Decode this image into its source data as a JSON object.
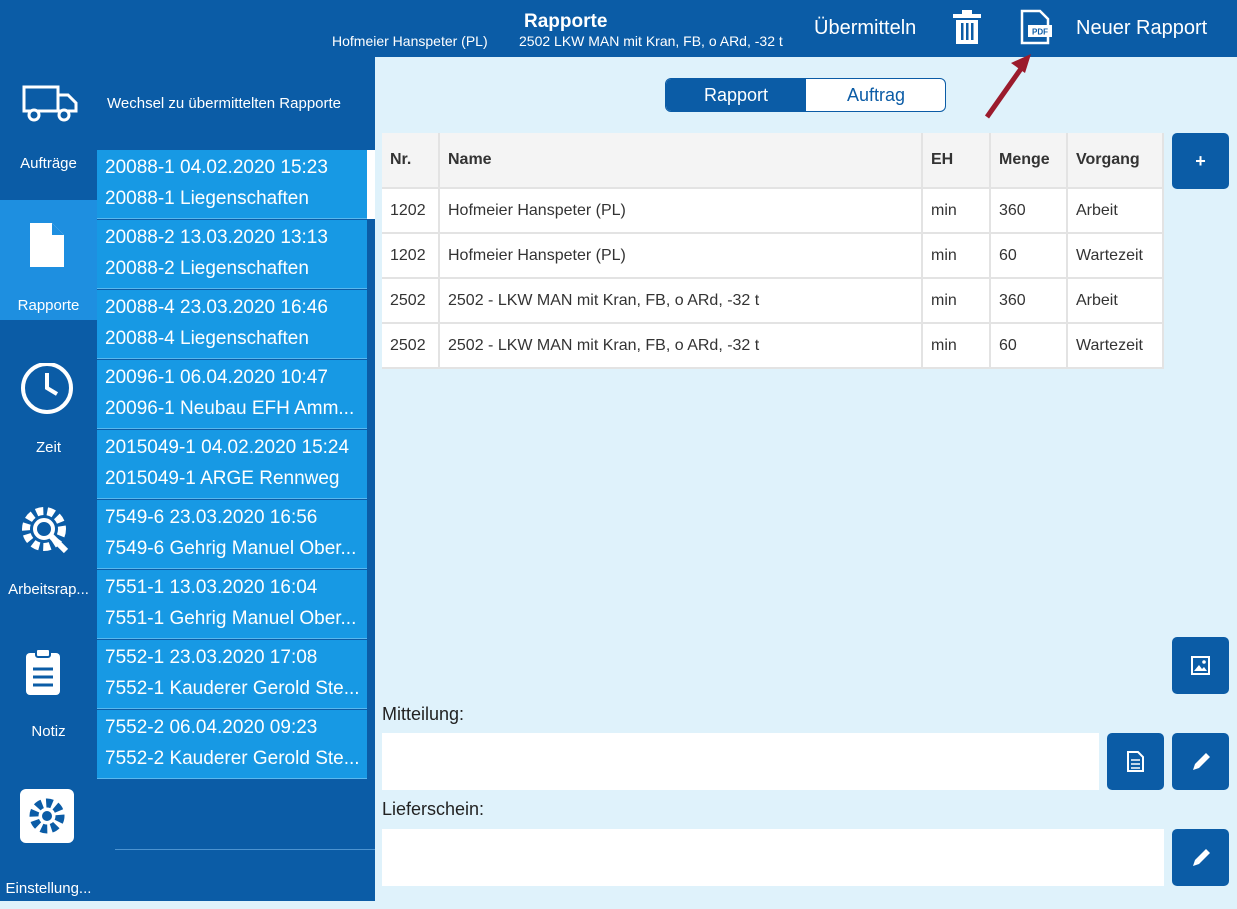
{
  "header": {
    "title": "Rapporte",
    "subtitle_person": "Hofmeier Hanspeter (PL)",
    "subtitle_vehicle": "2502 LKW MAN mit Kran, FB, o ARd, -32 t",
    "submit": "Übermitteln",
    "new_report": "Neuer Rapport"
  },
  "nav": [
    "Aufträge",
    "Rapporte",
    "Zeit",
    "Arbeitsrap...",
    "Notiz",
    "Einstellung..."
  ],
  "list": {
    "toggle": "Wechsel zu übermittelten Rapporte",
    "items": [
      {
        "line1": "20088-1 04.02.2020 15:23",
        "line2": "20088-1 Liegenschaften"
      },
      {
        "line1": "20088-2 13.03.2020 13:13",
        "line2": "20088-2 Liegenschaften"
      },
      {
        "line1": "20088-4 23.03.2020 16:46",
        "line2": "20088-4 Liegenschaften"
      },
      {
        "line1": "20096-1 06.04.2020 10:47",
        "line2": "20096-1 Neubau EFH Amm..."
      },
      {
        "line1": "2015049-1 04.02.2020 15:24",
        "line2": "2015049-1 ARGE Rennweg"
      },
      {
        "line1": "7549-6 23.03.2020 16:56",
        "line2": "7549-6 Gehrig Manuel Ober..."
      },
      {
        "line1": "7551-1 13.03.2020 16:04",
        "line2": "7551-1 Gehrig Manuel Ober..."
      },
      {
        "line1": "7552-1 23.03.2020 17:08",
        "line2": "7552-1 Kauderer Gerold Ste..."
      },
      {
        "line1": "7552-2 06.04.2020 09:23",
        "line2": "7552-2 Kauderer Gerold Ste..."
      }
    ]
  },
  "segments": [
    "Rapport",
    "Auftrag"
  ],
  "table": {
    "columns": [
      "Nr.",
      "Name",
      "EH",
      "Menge",
      "Vorgang"
    ],
    "rows": [
      [
        "1202",
        "Hofmeier Hanspeter (PL)",
        "min",
        "360",
        "Arbeit"
      ],
      [
        "1202",
        "Hofmeier Hanspeter (PL)",
        "min",
        "60",
        "Wartezeit"
      ],
      [
        "2502",
        "2502 - LKW MAN mit Kran, FB, o ARd, -32 t",
        "min",
        "360",
        "Arbeit"
      ],
      [
        "2502",
        "2502 - LKW MAN mit Kran, FB, o ARd, -32 t",
        "min",
        "60",
        "Wartezeit"
      ]
    ]
  },
  "add_button": "+",
  "fields": {
    "message": "Mitteilung:",
    "delivery": "Lieferschein:"
  }
}
